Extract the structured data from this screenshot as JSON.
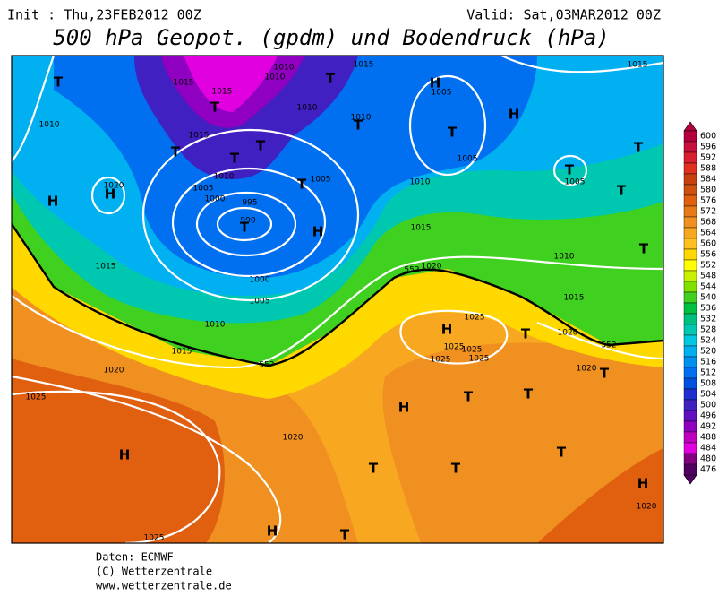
{
  "header": {
    "init": "Init : Thu,23FEB2012 00Z",
    "valid": "Valid: Sat,03MAR2012 00Z",
    "title": "500 hPa Geopot. (gpdm) und Bodendruck (hPa)"
  },
  "colorbar": {
    "ticks": [
      600,
      596,
      592,
      588,
      584,
      580,
      576,
      572,
      568,
      564,
      560,
      556,
      552,
      548,
      544,
      540,
      536,
      532,
      528,
      524,
      520,
      516,
      512,
      508,
      504,
      500,
      496,
      492,
      488,
      484,
      480,
      476
    ],
    "colors": [
      "#b4003c",
      "#c8103c",
      "#d82030",
      "#e03020",
      "#c84010",
      "#d05010",
      "#e06010",
      "#e87818",
      "#f09020",
      "#f8a820",
      "#ffc020",
      "#ffd800",
      "#ffff00",
      "#c8f000",
      "#80e000",
      "#40d020",
      "#00c040",
      "#00c080",
      "#00c8b0",
      "#00c8e0",
      "#00b0f0",
      "#0090f0",
      "#0070f0",
      "#0050e0",
      "#2030d0",
      "#4020c0",
      "#6010c0",
      "#9000c0",
      "#c000c0",
      "#e000e0",
      "#800080",
      "#500060"
    ]
  },
  "isobar_labels": [
    1010,
    1015,
    1015,
    1015,
    1010,
    1015,
    1005,
    1010,
    1010,
    1010,
    1015,
    1005,
    1005,
    1005,
    1010,
    1020,
    1005,
    1000,
    995,
    990,
    1010,
    1015,
    1015,
    1000,
    1005,
    1010,
    1015,
    1020,
    1010,
    1015,
    1020,
    1025,
    1025,
    1025,
    1025,
    1025,
    1020,
    1020,
    1025,
    1020,
    1025,
    1020,
    552,
    552,
    552
  ],
  "systems": [
    "T",
    "T",
    "H",
    "H",
    "T",
    "T",
    "T",
    "T",
    "T",
    "T",
    "T",
    "T",
    "T",
    "T",
    "H",
    "H",
    "T",
    "H",
    "T",
    "H",
    "T",
    "T",
    "T",
    "T",
    "H",
    "T",
    "H",
    "T",
    "T",
    "H",
    "H",
    "T"
  ],
  "footer": [
    "Daten: ECMWF",
    "(C) Wetterzentrale",
    "www.wetterzentrale.de"
  ]
}
